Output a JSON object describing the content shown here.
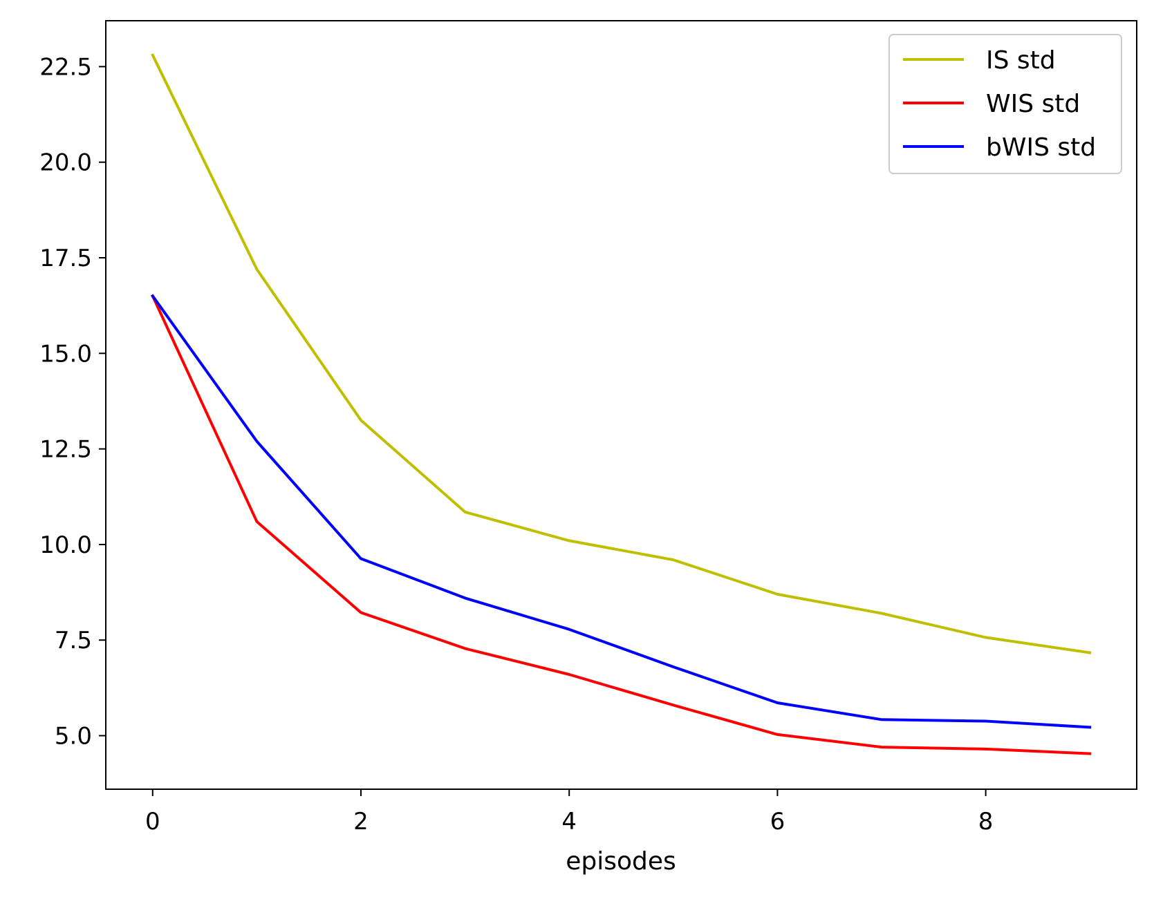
{
  "chart_data": {
    "type": "line",
    "title": "",
    "xlabel": "episodes",
    "ylabel": "",
    "x": [
      0,
      1,
      2,
      3,
      4,
      5,
      6,
      7,
      8,
      9
    ],
    "xlim": [
      -0.45,
      9.45
    ],
    "ylim": [
      3.6,
      23.7
    ],
    "xticks": [
      0,
      2,
      4,
      6,
      8
    ],
    "xtick_labels": [
      "0",
      "2",
      "4",
      "6",
      "8"
    ],
    "yticks": [
      5.0,
      7.5,
      10.0,
      12.5,
      15.0,
      17.5,
      20.0,
      22.5
    ],
    "ytick_labels": [
      "5.0",
      "7.5",
      "10.0",
      "12.5",
      "15.0",
      "17.5",
      "20.0",
      "22.5"
    ],
    "grid": false,
    "legend_position": "top-right",
    "series": [
      {
        "name": "IS std",
        "color": "#bfbf00",
        "values": [
          22.8,
          17.2,
          13.25,
          10.85,
          10.1,
          9.6,
          8.7,
          8.2,
          7.57,
          7.17
        ]
      },
      {
        "name": "WIS std",
        "color": "#ff0000",
        "values": [
          16.5,
          10.6,
          8.22,
          7.28,
          6.6,
          5.8,
          5.03,
          4.7,
          4.65,
          4.53
        ]
      },
      {
        "name": "bWIS std",
        "color": "#0000ff",
        "values": [
          16.5,
          12.7,
          9.63,
          8.6,
          7.78,
          6.8,
          5.86,
          5.42,
          5.38,
          5.22
        ]
      }
    ]
  }
}
